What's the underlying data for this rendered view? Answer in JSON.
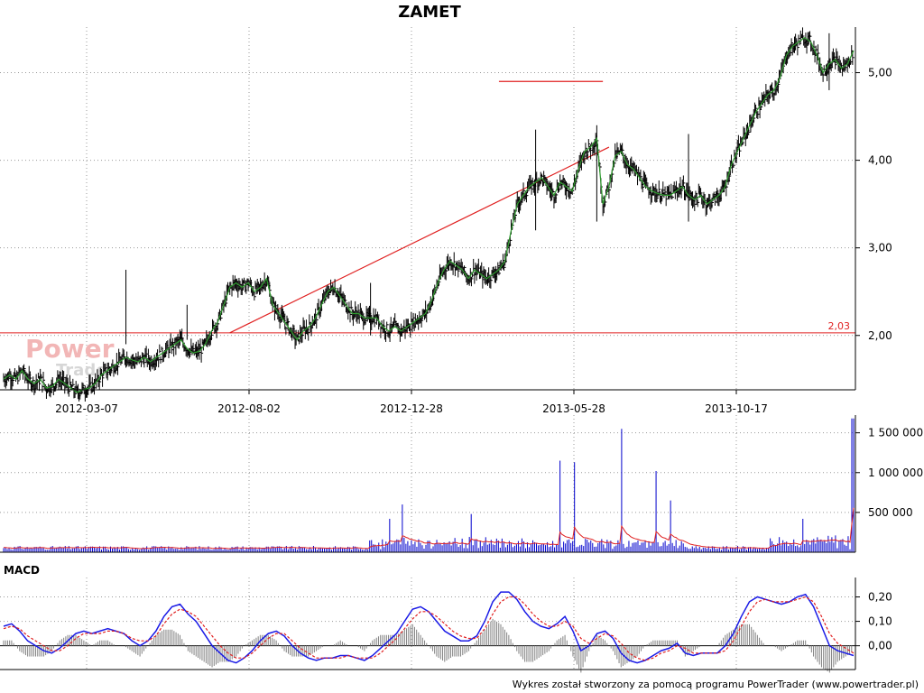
{
  "chart_data": [
    {
      "type": "line",
      "title": "ZAMET",
      "x_tick_labels": [
        "2012-03-07",
        "2012-08-02",
        "2012-12-28",
        "2013-05-28",
        "2013-10-17"
      ],
      "y_tick_labels": [
        "2,00",
        "3,00",
        "4,00",
        "5,00"
      ],
      "ylim": [
        1.4,
        5.5
      ],
      "grid": true,
      "series": [
        {
          "values": [
            1.5,
            1.55,
            1.5,
            1.6,
            1.5,
            1.45,
            1.5,
            1.4,
            1.42,
            1.5,
            1.45,
            1.4,
            1.35,
            1.38,
            1.4,
            1.45,
            1.55,
            1.6,
            1.65,
            1.7,
            1.75,
            1.72,
            1.7,
            1.75,
            1.7,
            1.75,
            1.8,
            1.85,
            1.9,
            1.95,
            1.85,
            1.8,
            1.82,
            1.9,
            2.05,
            2.15,
            2.35,
            2.55,
            2.6,
            2.55,
            2.6,
            2.5,
            2.55,
            2.65,
            2.35,
            2.25,
            2.15,
            2.05,
            1.95,
            2.05,
            2.1,
            2.2,
            2.35,
            2.5,
            2.55,
            2.45,
            2.35,
            2.25,
            2.25,
            2.2,
            2.2,
            2.2,
            2.1,
            2.05,
            2.1,
            2.05,
            2.1,
            2.15,
            2.2,
            2.25,
            2.4,
            2.6,
            2.75,
            2.85,
            2.8,
            2.75,
            2.65,
            2.75,
            2.7,
            2.65,
            2.7,
            2.75,
            2.85,
            3.2,
            3.5,
            3.6,
            3.7,
            3.75,
            3.8,
            3.7,
            3.6,
            3.75,
            3.7,
            3.65,
            3.9,
            4.1,
            4.15,
            4.25,
            3.5,
            3.7,
            4.05,
            4.1,
            3.95,
            3.9,
            3.8,
            3.7,
            3.65,
            3.62,
            3.6,
            3.6,
            3.65,
            3.7,
            3.6,
            3.55,
            3.6,
            3.5,
            3.55,
            3.6,
            3.7,
            3.95,
            4.1,
            4.25,
            4.4,
            4.55,
            4.65,
            4.75,
            4.8,
            4.95,
            5.2,
            5.3,
            5.35,
            5.4,
            5.35,
            5.2,
            5.0,
            5.1,
            5.15,
            5.05,
            5.1,
            5.25
          ]
        }
      ],
      "reference_line": {
        "value": 2.03,
        "label": "2,03",
        "color": "#e02020"
      },
      "resistance_line": {
        "from": [
          81,
          4.9
        ],
        "to": [
          98,
          4.9
        ],
        "color": "#e02020"
      },
      "trend_line": {
        "from": [
          37,
          2.03
        ],
        "to": [
          99,
          4.15
        ],
        "color": "#e02020"
      },
      "watermark": {
        "line1": "Power",
        "line2": "Trader"
      },
      "colors": {
        "price_bar": "#000000",
        "price_line": "#2e9a2e"
      }
    },
    {
      "type": "bar",
      "y_tick_labels": [
        "500 000",
        "1 000 000",
        "1 500 000"
      ],
      "ylim": [
        0,
        1700000
      ],
      "grid": true,
      "spikes": [
        {
          "pos": 0.47,
          "value": 600000
        },
        {
          "pos": 0.455,
          "value": 420000
        },
        {
          "pos": 0.55,
          "value": 480000
        },
        {
          "pos": 0.655,
          "value": 1150000
        },
        {
          "pos": 0.672,
          "value": 1130000
        },
        {
          "pos": 0.728,
          "value": 1550000
        },
        {
          "pos": 0.768,
          "value": 1020000
        },
        {
          "pos": 0.785,
          "value": 650000
        },
        {
          "pos": 0.94,
          "value": 420000
        },
        {
          "pos": 0.999,
          "value": 1680000
        }
      ],
      "colors": {
        "bars": "#0000cc",
        "average": "#e02020"
      }
    },
    {
      "type": "line",
      "title": "MACD",
      "y_tick_labels": [
        "0,00",
        "0,10",
        "0,20"
      ],
      "ylim": [
        -0.09,
        0.25
      ],
      "grid": true,
      "series": [
        {
          "values": [
            0.08,
            0.09,
            0.06,
            0.02,
            0.0,
            -0.02,
            -0.03,
            -0.01,
            0.02,
            0.05,
            0.06,
            0.05,
            0.06,
            0.07,
            0.06,
            0.05,
            0.02,
            0.0,
            0.02,
            0.06,
            0.12,
            0.16,
            0.17,
            0.13,
            0.1,
            0.05,
            0.0,
            -0.03,
            -0.06,
            -0.07,
            -0.05,
            -0.02,
            0.02,
            0.05,
            0.06,
            0.04,
            0.0,
            -0.03,
            -0.05,
            -0.06,
            -0.05,
            -0.05,
            -0.04,
            -0.04,
            -0.05,
            -0.06,
            -0.04,
            -0.01,
            0.02,
            0.05,
            0.1,
            0.15,
            0.16,
            0.14,
            0.1,
            0.06,
            0.04,
            0.02,
            0.02,
            0.04,
            0.1,
            0.18,
            0.22,
            0.22,
            0.19,
            0.14,
            0.1,
            0.08,
            0.07,
            0.09,
            0.12,
            0.06,
            -0.02,
            0.0,
            0.05,
            0.06,
            0.03,
            -0.03,
            -0.06,
            -0.07,
            -0.06,
            -0.04,
            -0.02,
            -0.01,
            0.01,
            -0.03,
            -0.04,
            -0.03,
            -0.03,
            -0.03,
            0.0,
            0.05,
            0.12,
            0.18,
            0.2,
            0.19,
            0.18,
            0.17,
            0.18,
            0.2,
            0.21,
            0.16,
            0.08,
            0.0,
            -0.02,
            -0.03,
            -0.04
          ],
          "color": "#1a1ae6"
        },
        {
          "values": [
            0.07,
            0.08,
            0.07,
            0.04,
            0.02,
            0.0,
            -0.02,
            -0.02,
            0.0,
            0.03,
            0.05,
            0.05,
            0.05,
            0.06,
            0.06,
            0.05,
            0.03,
            0.02,
            0.02,
            0.04,
            0.09,
            0.13,
            0.15,
            0.14,
            0.12,
            0.08,
            0.04,
            0.0,
            -0.03,
            -0.05,
            -0.05,
            -0.03,
            0.0,
            0.03,
            0.05,
            0.05,
            0.02,
            -0.01,
            -0.03,
            -0.05,
            -0.05,
            -0.05,
            -0.05,
            -0.04,
            -0.05,
            -0.05,
            -0.05,
            -0.03,
            0.0,
            0.03,
            0.07,
            0.11,
            0.14,
            0.14,
            0.12,
            0.09,
            0.06,
            0.04,
            0.03,
            0.03,
            0.07,
            0.13,
            0.18,
            0.2,
            0.2,
            0.17,
            0.13,
            0.1,
            0.08,
            0.08,
            0.1,
            0.08,
            0.03,
            0.01,
            0.03,
            0.05,
            0.04,
            0.01,
            -0.03,
            -0.05,
            -0.06,
            -0.05,
            -0.03,
            -0.02,
            0.0,
            -0.01,
            -0.03,
            -0.03,
            -0.03,
            -0.03,
            -0.02,
            0.02,
            0.08,
            0.14,
            0.18,
            0.19,
            0.18,
            0.18,
            0.18,
            0.19,
            0.2,
            0.18,
            0.12,
            0.05,
            0.01,
            -0.01,
            -0.03
          ],
          "color": "#e02020"
        }
      ],
      "histogram_color": "#808080"
    }
  ],
  "footer": "Wykres został stworzony za pomocą programu PowerTrader (www.powertrader.pl)"
}
